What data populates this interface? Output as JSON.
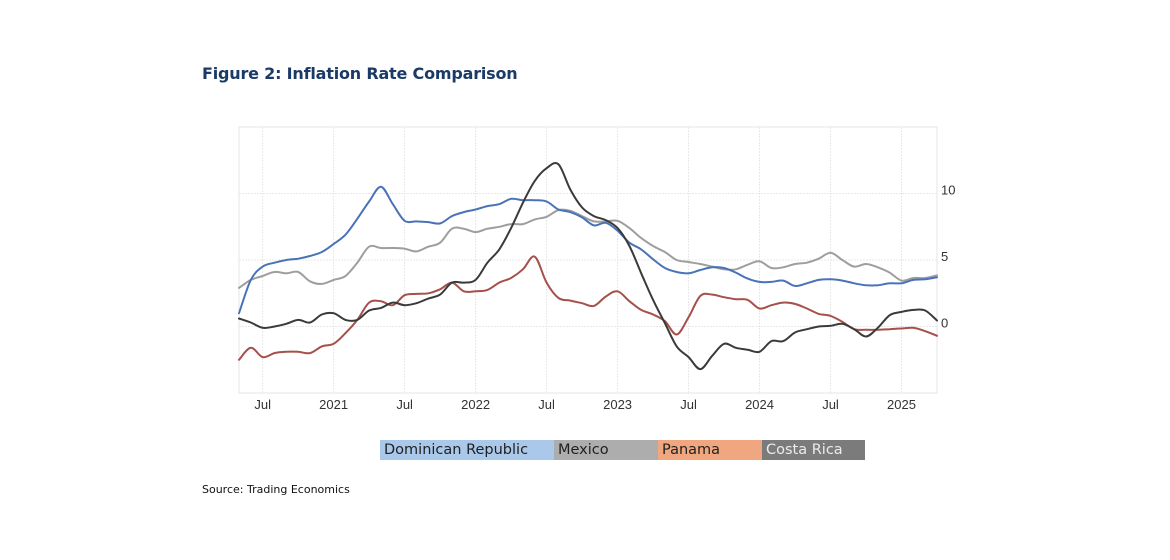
{
  "figure": {
    "title": "Figure 2: Inflation Rate Comparison",
    "source": "Source: Trading Economics"
  },
  "legend": [
    {
      "label": "Dominican Republic",
      "bg": "#a9c8ea",
      "text_color": "#1f1f1f"
    },
    {
      "label": "Mexico",
      "bg": "#adadad",
      "text_color": "#1f1f1f"
    },
    {
      "label": "Panama",
      "bg": "#f0a77f",
      "text_color": "#1f1f1f"
    },
    {
      "label": "Costa Rica",
      "bg": "#7b7b7b",
      "text_color": "#ececec"
    }
  ],
  "chart_data": {
    "type": "line",
    "title": "Inflation Rate Comparison",
    "xlabel": "",
    "ylabel": "",
    "x_start": "2020-05",
    "x_end": "2025-04",
    "x_unit": "month",
    "x_tick_labels": [
      {
        "month_index": 2,
        "label": "Jul"
      },
      {
        "month_index": 8,
        "label": "2021"
      },
      {
        "month_index": 14,
        "label": "Jul"
      },
      {
        "month_index": 20,
        "label": "2022"
      },
      {
        "month_index": 26,
        "label": "Jul"
      },
      {
        "month_index": 32,
        "label": "2023"
      },
      {
        "month_index": 38,
        "label": "Jul"
      },
      {
        "month_index": 44,
        "label": "2024"
      },
      {
        "month_index": 50,
        "label": "Jul"
      },
      {
        "month_index": 56,
        "label": "2025"
      }
    ],
    "ylim": [
      -5,
      15
    ],
    "y_gridlines": [
      -5,
      0,
      5,
      10,
      15
    ],
    "y_tick_labels": [
      {
        "value": 0,
        "label": "0"
      },
      {
        "value": 5,
        "label": "5"
      },
      {
        "value": 10,
        "label": "10"
      }
    ],
    "y_axis_side": "right",
    "grid": true,
    "legend_position": "bottom",
    "series": [
      {
        "name": "Dominican Republic",
        "color": "#4a72b8",
        "values": [
          1.0,
          3.5,
          4.5,
          4.8,
          5.0,
          5.1,
          5.3,
          5.6,
          6.2,
          6.9,
          8.1,
          9.4,
          10.5,
          9.2,
          7.95,
          7.9,
          7.85,
          7.75,
          8.3,
          8.6,
          8.8,
          9.05,
          9.2,
          9.6,
          9.5,
          9.5,
          9.4,
          8.8,
          8.6,
          8.2,
          7.6,
          7.8,
          7.2,
          6.3,
          5.8,
          5.05,
          4.4,
          4.1,
          4.0,
          4.25,
          4.45,
          4.4,
          4.05,
          3.6,
          3.35,
          3.35,
          3.45,
          3.05,
          3.25,
          3.5,
          3.55,
          3.45,
          3.25,
          3.1,
          3.1,
          3.25,
          3.25,
          3.5,
          3.55,
          3.7
        ]
      },
      {
        "name": "Mexico",
        "color": "#9e9e9e",
        "values": [
          2.9,
          3.5,
          3.8,
          4.1,
          4.0,
          4.1,
          3.4,
          3.2,
          3.5,
          3.8,
          4.8,
          6.0,
          5.9,
          5.9,
          5.85,
          5.65,
          6.0,
          6.3,
          7.35,
          7.35,
          7.1,
          7.35,
          7.5,
          7.7,
          7.7,
          8.05,
          8.25,
          8.75,
          8.7,
          8.3,
          7.9,
          7.9,
          7.95,
          7.4,
          6.65,
          6.05,
          5.6,
          5.0,
          4.85,
          4.7,
          4.5,
          4.3,
          4.3,
          4.65,
          4.9,
          4.4,
          4.45,
          4.7,
          4.8,
          5.1,
          5.55,
          5.0,
          4.5,
          4.7,
          4.45,
          4.05,
          3.45,
          3.65,
          3.65,
          3.85
        ]
      },
      {
        "name": "Panama",
        "color": "#a5504a",
        "values": [
          -2.5,
          -1.6,
          -2.3,
          -2.0,
          -1.9,
          -1.9,
          -2.0,
          -1.5,
          -1.3,
          -0.5,
          0.5,
          1.8,
          1.9,
          1.6,
          2.35,
          2.45,
          2.5,
          2.8,
          3.3,
          2.65,
          2.65,
          2.75,
          3.3,
          3.65,
          4.3,
          5.25,
          3.3,
          2.15,
          1.95,
          1.75,
          1.55,
          2.25,
          2.65,
          1.9,
          1.25,
          0.9,
          0.4,
          -0.6,
          0.7,
          2.3,
          2.4,
          2.2,
          2.05,
          2.0,
          1.35,
          1.6,
          1.8,
          1.7,
          1.35,
          0.95,
          0.8,
          0.35,
          -0.2,
          -0.25,
          -0.25,
          -0.2,
          -0.15,
          -0.1,
          -0.35,
          -0.7
        ]
      },
      {
        "name": "Costa Rica",
        "color": "#3a3a3a",
        "values": [
          0.6,
          0.3,
          -0.1,
          0.0,
          0.2,
          0.5,
          0.3,
          0.9,
          1.0,
          0.5,
          0.5,
          1.2,
          1.4,
          1.8,
          1.6,
          1.75,
          2.1,
          2.4,
          3.3,
          3.3,
          3.5,
          4.8,
          5.8,
          7.4,
          9.3,
          10.95,
          11.9,
          12.2,
          10.3,
          8.95,
          8.3,
          8.0,
          7.4,
          6.05,
          4.0,
          2.0,
          0.25,
          -1.5,
          -2.3,
          -3.2,
          -2.2,
          -1.3,
          -1.6,
          -1.75,
          -1.9,
          -1.1,
          -1.1,
          -0.45,
          -0.2,
          0.0,
          0.05,
          0.2,
          -0.2,
          -0.75,
          -0.1,
          0.85,
          1.1,
          1.25,
          1.2,
          0.45
        ]
      }
    ]
  }
}
